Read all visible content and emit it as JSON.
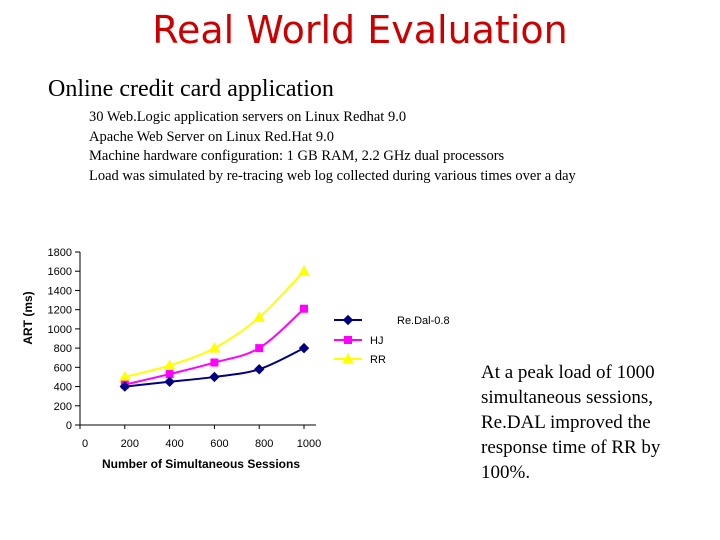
{
  "slide": {
    "title": "Real World Evaluation",
    "subtitle": "Online credit card application",
    "details": [
      "30 Web.Logic application servers on Linux Redhat 9.0",
      "Apache Web Server on Linux Red.Hat 9.0",
      "Machine hardware configuration: 1 GB RAM, 2.2 GHz dual processors",
      "Load was simulated by re-tracing web log collected during various times over a day"
    ],
    "note": "At a peak load of 1000 simultaneous sessions, Re.DAL improved the response time of RR by 100%."
  },
  "chart_data": {
    "type": "line",
    "xlabel": "Number of Simultaneous Sessions",
    "ylabel": "ART (ms)",
    "xlim": [
      0,
      1000
    ],
    "ylim": [
      0,
      1800
    ],
    "x_ticks": [
      0,
      200,
      400,
      600,
      800,
      1000
    ],
    "y_ticks": [
      0,
      200,
      400,
      600,
      800,
      1000,
      1200,
      1400,
      1600,
      1800
    ],
    "grid": false,
    "legend_position": "right",
    "x": [
      200,
      400,
      600,
      800,
      1000
    ],
    "series": [
      {
        "name": "Re.Dal-0.8",
        "color": "#000080",
        "marker": "diamond",
        "values": [
          400,
          450,
          500,
          580,
          800
        ]
      },
      {
        "name": "HJ",
        "color": "#ff00ff",
        "marker": "square",
        "values": [
          420,
          530,
          650,
          800,
          1210
        ]
      },
      {
        "name": "RR",
        "color": "#ffff00",
        "marker": "triangle",
        "values": [
          500,
          620,
          800,
          1120,
          1600
        ]
      }
    ]
  }
}
